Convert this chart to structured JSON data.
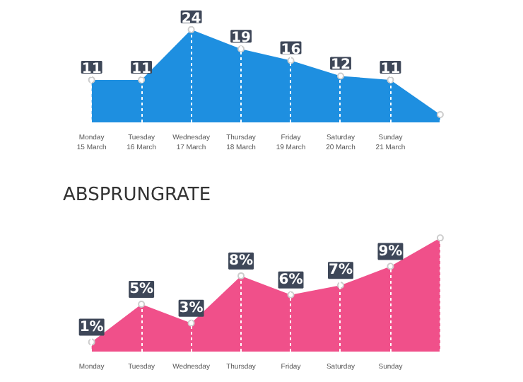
{
  "chart_data": [
    {
      "type": "area",
      "categories": [
        "Monday\n15 March",
        "Tuesday\n16 March",
        "Wednesday\n17 March",
        "Thursday\n18 March",
        "Friday\n19 March",
        "Saturday\n20 March",
        "Sunday\n21 March",
        null
      ],
      "series": [
        {
          "color": "#1e8fe0",
          "values": [
            11,
            11,
            24,
            19,
            16,
            12,
            11,
            2
          ],
          "value_labels": [
            "11",
            "11",
            "24",
            "19",
            "16",
            "12",
            "11",
            null
          ]
        }
      ],
      "marker": "circle",
      "grid": "x"
    },
    {
      "type": "area",
      "title": "ABSPRUNGRATE",
      "categories": [
        "Monday",
        "Tuesday",
        "Wednesday",
        "Thursday",
        "Friday",
        "Saturday",
        "Sunday",
        null
      ],
      "series": [
        {
          "color": "#f0508a",
          "values": [
            1,
            5,
            3,
            8,
            6,
            7,
            9,
            12
          ],
          "value_labels": [
            "1%",
            "5%",
            "3%",
            "8%",
            "6%",
            "7%",
            "9%",
            null
          ]
        }
      ],
      "marker": "circle",
      "grid": "x"
    }
  ]
}
